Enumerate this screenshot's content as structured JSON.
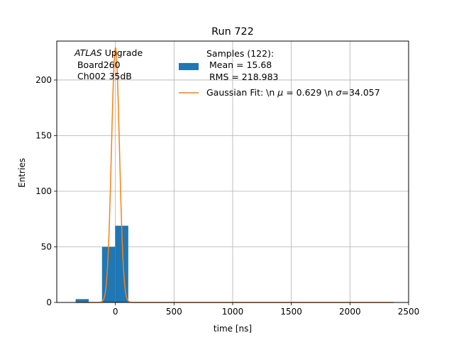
{
  "chart_data": {
    "type": "bar",
    "title": "Run 722",
    "xlabel": "time [ns]",
    "ylabel": "Entries",
    "xlim": [
      -500,
      2500
    ],
    "ylim": [
      0,
      235
    ],
    "grid": true,
    "xticks": [
      0,
      500,
      1000,
      1500,
      2000,
      2500
    ],
    "yticks": [
      0,
      50,
      100,
      150,
      200
    ],
    "histogram": {
      "name": "Samples (122):",
      "color": "#1f77b4",
      "bins": [
        {
          "x0": -339,
          "x1": -227,
          "value": 3
        },
        {
          "x0": -114,
          "x1": -2,
          "value": 50
        },
        {
          "x0": -2,
          "x1": 110,
          "value": 69
        }
      ]
    },
    "fit": {
      "name": "Gaussian Fit: \\n μ = 0.629 \\n σ=34.057",
      "color": "#ff7f0e",
      "amplitude": 229,
      "mu": 0.629,
      "sigma": 34.057,
      "x_range": [
        -339,
        2370
      ]
    },
    "legend_placement": "top-right",
    "legend": {
      "histogram_lines": [
        "Samples (122):",
        " Mean = 15.68",
        " RMS = 218.983"
      ],
      "fit_line": {
        "prefix": "Gaussian Fit: \\n ",
        "mu_sym": "μ",
        "mu_text": " = 0.629 \\n ",
        "sigma_sym": "σ",
        "sigma_text": "=34.057"
      }
    },
    "annotation": {
      "atlas": "ATLAS",
      "upgrade": " Upgrade",
      "line2": " Board260",
      "line3": " Ch002 35dB"
    }
  },
  "colors": {
    "bar": "#1f77b4",
    "fit": "#ff7f0e",
    "grid": "#b0b0b0"
  }
}
